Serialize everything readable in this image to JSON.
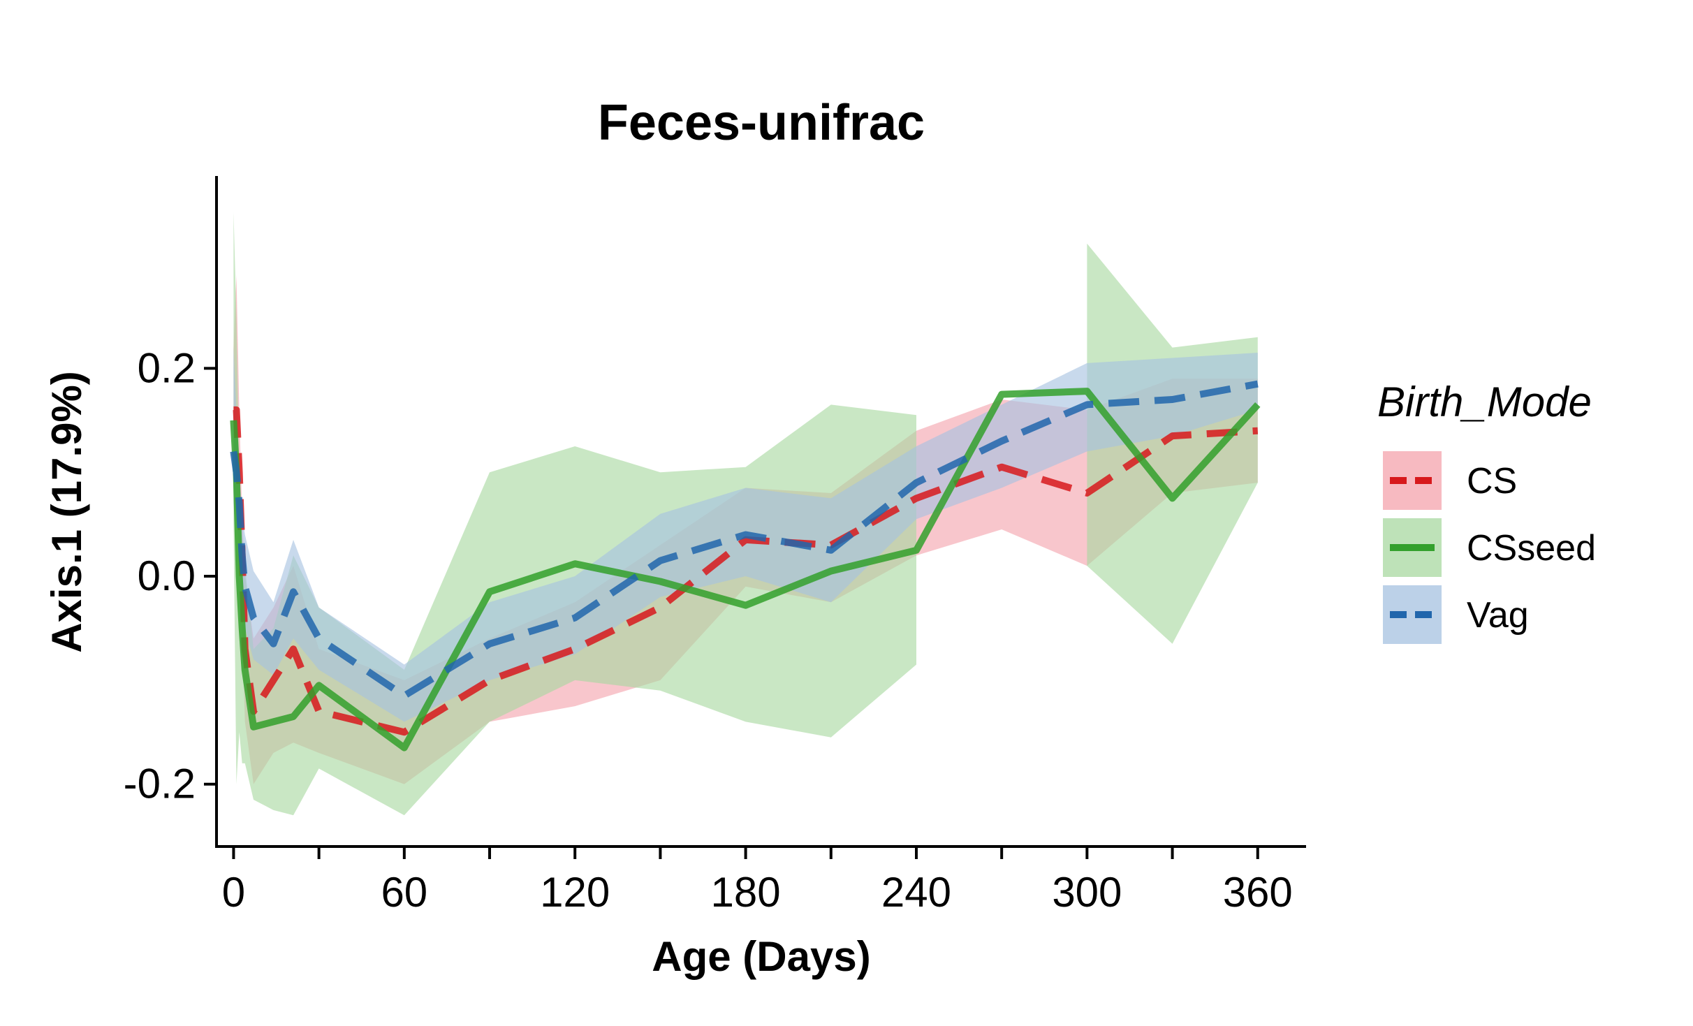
{
  "chart_data": {
    "type": "line",
    "title": "Feces-unifrac",
    "xlabel": "Age (Days)",
    "ylabel": "Axis.1 (17.9%)",
    "xlim": [
      -6,
      377
    ],
    "ylim": [
      -0.26,
      0.385
    ],
    "xticks": [
      0,
      30,
      60,
      90,
      120,
      150,
      180,
      210,
      240,
      270,
      300,
      330,
      360
    ],
    "xtick_labels": [
      {
        "value": 0,
        "label": "0"
      },
      {
        "value": 60,
        "label": "60"
      },
      {
        "value": 120,
        "label": "120"
      },
      {
        "value": 180,
        "label": "180"
      },
      {
        "value": 240,
        "label": "240"
      },
      {
        "value": 300,
        "label": "300"
      },
      {
        "value": 360,
        "label": "360"
      }
    ],
    "yticks": [
      {
        "value": -0.2,
        "label": "-0.2"
      },
      {
        "value": 0.0,
        "label": "0.0"
      },
      {
        "value": 0.2,
        "label": "0.2"
      }
    ],
    "grid": false,
    "legend": {
      "title": "Birth_Mode",
      "placement": "right"
    },
    "series": [
      {
        "name": "CS",
        "line_color": "#d7191c",
        "ribbon_color": "#f4a3ac",
        "dash": "dashed",
        "x": [
          0,
          1,
          2,
          3,
          4,
          7,
          14,
          21,
          30,
          60,
          90,
          120,
          150,
          180,
          210,
          240,
          270,
          300,
          330,
          360
        ],
        "y": [
          0.16,
          0.16,
          0.1,
          0.02,
          -0.07,
          -0.13,
          -0.1,
          -0.07,
          -0.13,
          -0.15,
          -0.1,
          -0.07,
          -0.03,
          0.035,
          0.03,
          0.075,
          0.105,
          0.08,
          0.135,
          0.14
        ],
        "lower": [
          0.12,
          0.1,
          0.05,
          -0.05,
          -0.14,
          -0.2,
          -0.17,
          -0.16,
          -0.17,
          -0.2,
          -0.14,
          -0.125,
          -0.1,
          -0.01,
          -0.025,
          0.02,
          0.045,
          0.01,
          0.08,
          0.09
        ],
        "upper": [
          0.22,
          0.29,
          0.16,
          0.06,
          0.0,
          -0.06,
          -0.03,
          0.01,
          -0.07,
          -0.1,
          -0.06,
          -0.025,
          0.03,
          0.085,
          0.08,
          0.14,
          0.17,
          0.16,
          0.19,
          0.19
        ]
      },
      {
        "name": "CSseed",
        "line_color": "#33a02c",
        "ribbon_color": "#a8d8a0",
        "dash": "solid",
        "x": [
          0,
          1,
          2,
          3,
          4,
          7,
          14,
          21,
          30,
          60,
          90,
          120,
          150,
          180,
          210,
          240,
          270,
          300,
          330,
          360
        ],
        "y": [
          0.15,
          0.1,
          0.0,
          -0.05,
          -0.09,
          -0.145,
          -0.14,
          -0.135,
          -0.105,
          -0.165,
          -0.015,
          0.012,
          -0.005,
          -0.028,
          0.005,
          0.025,
          0.175,
          0.178,
          0.075,
          0.165
        ],
        "lower": [
          0.05,
          -0.2,
          -0.15,
          -0.18,
          -0.18,
          -0.215,
          -0.225,
          -0.23,
          -0.185,
          -0.23,
          -0.14,
          -0.1,
          -0.11,
          -0.14,
          -0.155,
          -0.085,
          null,
          0.01,
          -0.065,
          0.09
        ],
        "upper": [
          0.35,
          0.25,
          0.1,
          0.04,
          0.01,
          -0.07,
          -0.05,
          0.02,
          -0.03,
          -0.09,
          0.1,
          0.125,
          0.1,
          0.105,
          0.165,
          0.155,
          null,
          0.32,
          0.22,
          0.23
        ]
      },
      {
        "name": "Vag",
        "line_color": "#2166ac",
        "ribbon_color": "#a6c1e0",
        "dash": "dashed",
        "x": [
          0,
          1,
          2,
          3,
          4,
          7,
          14,
          21,
          30,
          60,
          90,
          120,
          150,
          180,
          210,
          240,
          270,
          300,
          330,
          360
        ],
        "y": [
          0.12,
          0.1,
          0.07,
          0.02,
          -0.01,
          -0.04,
          -0.065,
          -0.015,
          -0.06,
          -0.115,
          -0.065,
          -0.04,
          0.015,
          0.04,
          0.025,
          0.09,
          0.13,
          0.165,
          0.17,
          0.185
        ],
        "lower": [
          0.07,
          0.05,
          0.03,
          -0.02,
          -0.05,
          -0.08,
          -0.095,
          -0.06,
          -0.09,
          -0.14,
          -0.1,
          -0.075,
          -0.02,
          0.0,
          -0.025,
          0.055,
          0.085,
          0.12,
          0.135,
          0.16
        ],
        "upper": [
          0.22,
          0.16,
          0.1,
          0.06,
          0.04,
          0.005,
          -0.025,
          0.035,
          -0.03,
          -0.085,
          -0.025,
          0.0,
          0.06,
          0.085,
          0.075,
          0.125,
          0.165,
          0.205,
          0.21,
          0.215
        ]
      }
    ]
  }
}
